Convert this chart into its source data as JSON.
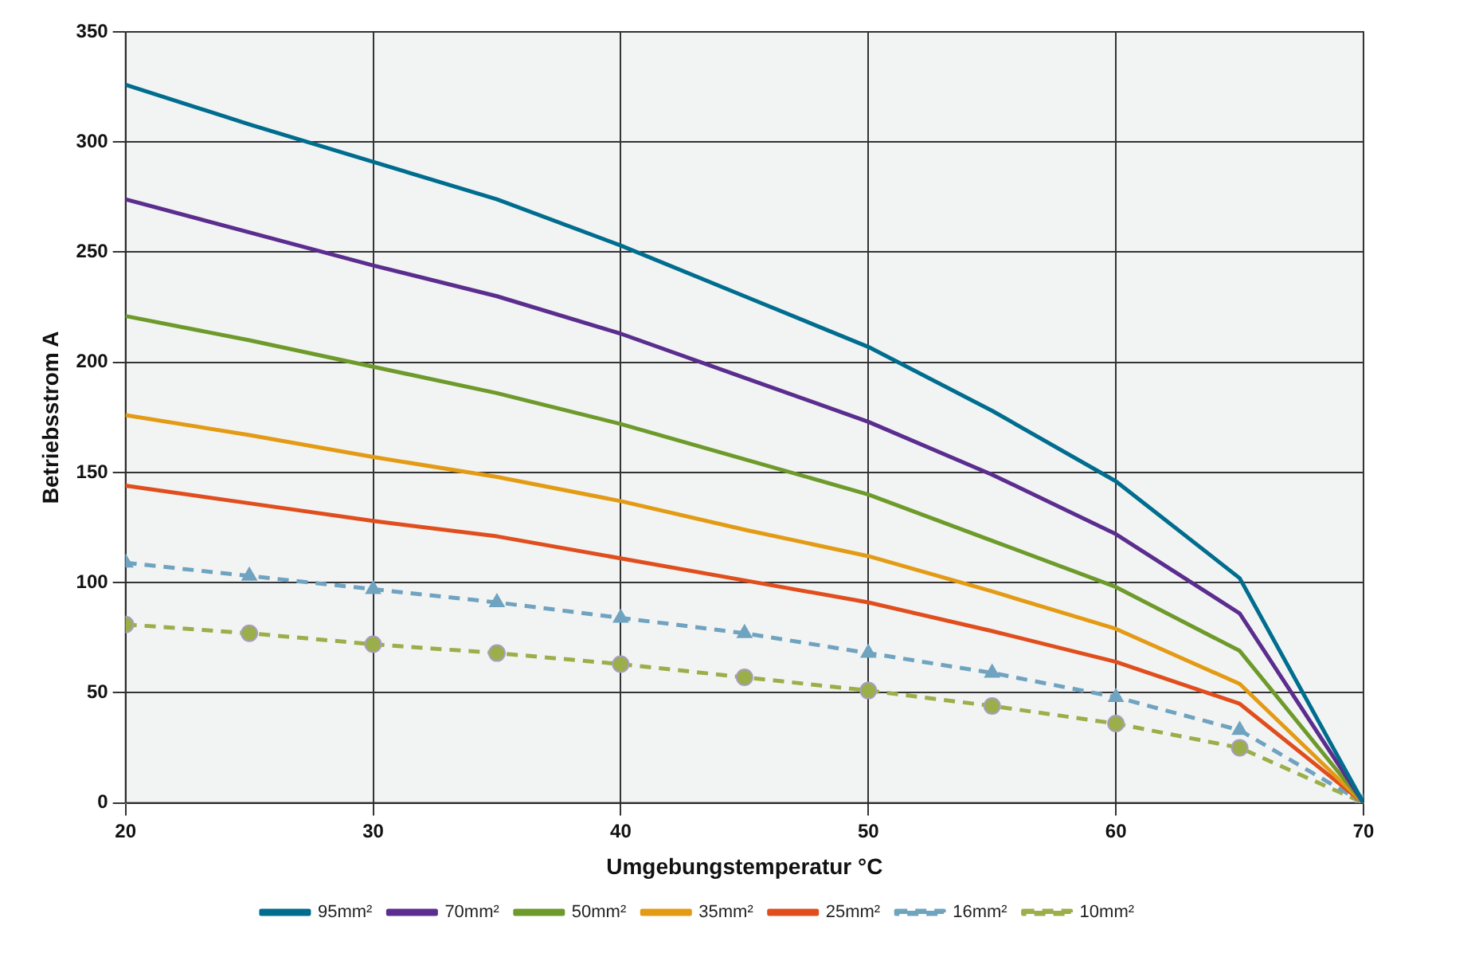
{
  "chart_data": {
    "type": "line",
    "xlabel": "Umgebungstemperatur °C",
    "ylabel": "Betriebsstrom A",
    "x": [
      20,
      25,
      30,
      35,
      40,
      45,
      50,
      55,
      60,
      65,
      70
    ],
    "xlim": [
      20,
      70
    ],
    "xticks": [
      20,
      30,
      40,
      50,
      60,
      70
    ],
    "ylim": [
      0,
      350
    ],
    "yticks": [
      0,
      50,
      100,
      150,
      200,
      250,
      300,
      350
    ],
    "grid": true,
    "legend": "bottom",
    "series": [
      {
        "name": "95mm²",
        "color": "#006d8f",
        "line_style": "solid",
        "marker": "none",
        "values": [
          326,
          308,
          291,
          274,
          253,
          230,
          207,
          178,
          146,
          102,
          0
        ]
      },
      {
        "name": "70mm²",
        "color": "#5b2d8e",
        "line_style": "solid",
        "marker": "none",
        "values": [
          274,
          259,
          244,
          230,
          213,
          193,
          173,
          149,
          122,
          86,
          0
        ]
      },
      {
        "name": "50mm²",
        "color": "#6e9a2c",
        "line_style": "solid",
        "marker": "none",
        "values": [
          221,
          210,
          198,
          186,
          172,
          156,
          140,
          119,
          98,
          69,
          0
        ]
      },
      {
        "name": "35mm²",
        "color": "#e39b15",
        "line_style": "solid",
        "marker": "none",
        "values": [
          176,
          167,
          157,
          148,
          137,
          124,
          112,
          96,
          79,
          54,
          0
        ]
      },
      {
        "name": "25mm²",
        "color": "#e04e1e",
        "line_style": "solid",
        "marker": "none",
        "values": [
          144,
          136,
          128,
          121,
          111,
          101,
          91,
          78,
          64,
          45,
          0
        ]
      },
      {
        "name": "16mm²",
        "color": "#6fa3c0",
        "line_style": "dashed",
        "marker": "triangle",
        "values": [
          109,
          103,
          97,
          91,
          84,
          77,
          68,
          59,
          48,
          33,
          0
        ]
      },
      {
        "name": "10mm²",
        "color": "#9aae4a",
        "line_style": "dashed",
        "marker": "circle",
        "values": [
          81,
          77,
          72,
          68,
          63,
          57,
          51,
          44,
          36,
          25,
          0
        ]
      }
    ]
  }
}
